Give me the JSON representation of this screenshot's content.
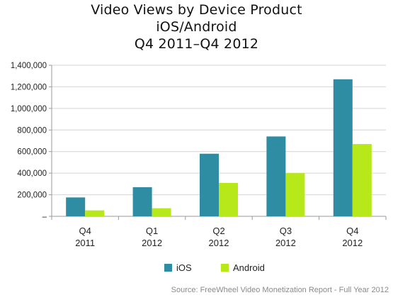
{
  "chart_data": {
    "type": "bar",
    "title_lines": [
      "Video Views by Device Product",
      "iOS/Android",
      "Q4 2011–Q4 2012"
    ],
    "categories": [
      [
        "Q4",
        "2011"
      ],
      [
        "Q1",
        "2012"
      ],
      [
        "Q2",
        "2012"
      ],
      [
        "Q3",
        "2012"
      ],
      [
        "Q4",
        "2012"
      ]
    ],
    "series": [
      {
        "name": "iOS",
        "color": "#2e8ca3",
        "values": [
          175000,
          270000,
          580000,
          740000,
          1270000
        ]
      },
      {
        "name": "Android",
        "color": "#b6e81a",
        "values": [
          55000,
          75000,
          310000,
          400000,
          670000
        ]
      }
    ],
    "xlabel": "",
    "ylabel": "",
    "ylim": [
      0,
      1400000
    ],
    "y_ticks": [
      0,
      200000,
      400000,
      600000,
      800000,
      1000000,
      1200000,
      1400000
    ],
    "y_tick_labels": [
      "–",
      "200,000",
      "400,000",
      "600,000",
      "800,000",
      "1,000,000",
      "1,200,000",
      "1,400,000"
    ],
    "grid": true,
    "legend_position": "bottom",
    "source": "Source: FreeWheel Video Monetization Report - Full Year 2012"
  }
}
